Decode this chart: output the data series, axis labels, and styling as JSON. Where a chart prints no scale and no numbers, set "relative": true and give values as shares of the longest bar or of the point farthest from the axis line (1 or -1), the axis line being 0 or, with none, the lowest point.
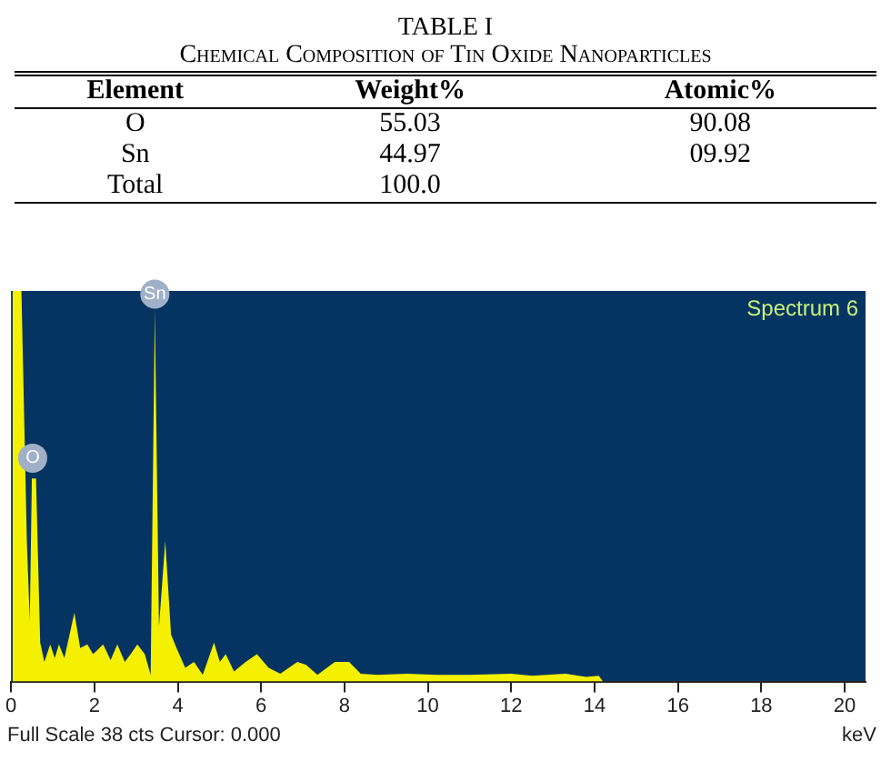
{
  "chart_data": [
    {
      "type": "other",
      "title": "TABLE I",
      "subtitle": "Chemical Composition of Tin Oxide Nanoparticles",
      "ylabel": "Element",
      "categories": [
        "Weight%",
        "Atomic%"
      ],
      "y_categories": [
        "O",
        "Sn",
        "Total"
      ],
      "cell_labels": [
        [
          "55.03",
          "90.08"
        ],
        [
          "44.97",
          "09.92"
        ],
        [
          "100.0",
          null
        ]
      ]
    },
    {
      "type": "area",
      "relative": true,
      "color": "#f4f000",
      "xlabel": "keV",
      "xlim": [
        0,
        20.5
      ],
      "xticks": [
        0,
        2,
        4,
        6,
        8,
        10,
        12,
        14,
        16,
        18,
        20
      ],
      "x": [
        0,
        0.04,
        0.25,
        0.38,
        0.45,
        0.5,
        0.6,
        0.7,
        0.8,
        0.94,
        1.05,
        1.15,
        1.28,
        1.52,
        1.66,
        1.83,
        1.97,
        2.21,
        2.39,
        2.55,
        2.73,
        2.87,
        3.03,
        3.21,
        3.35,
        3.45,
        3.55,
        3.7,
        3.84,
        3.97,
        4.18,
        4.39,
        4.6,
        4.87,
        5.01,
        5.15,
        5.35,
        5.63,
        5.9,
        6.18,
        6.46,
        6.87,
        7.08,
        7.35,
        7.77,
        8.11,
        8.39,
        8.8,
        9.5,
        10.2,
        11.0,
        12.0,
        12.5,
        13.3,
        13.8,
        14.1,
        14.2,
        20.5
      ],
      "values": [
        0,
        1,
        1,
        0.36,
        0.155,
        0.52,
        0.52,
        0.1,
        0.05,
        0.095,
        0.06,
        0.095,
        0.06,
        0.176,
        0.086,
        0.095,
        0.07,
        0.095,
        0.055,
        0.095,
        0.05,
        0.07,
        0.095,
        0.07,
        0.017,
        0.95,
        0.14,
        0.36,
        0.12,
        0.086,
        0.035,
        0.05,
        0.017,
        0.1,
        0.05,
        0.07,
        0.026,
        0.05,
        0.07,
        0.035,
        0.02,
        0.05,
        0.043,
        0.017,
        0.05,
        0.05,
        0.02,
        0.017,
        0.02,
        0.017,
        0.017,
        0.02,
        0.015,
        0.02,
        0.012,
        0.015,
        0,
        0
      ],
      "annotations": [
        "Spectrum 6",
        "Full Scale 38 cts Cursor: 0.000",
        {
          "text": "O",
          "x": 0.52,
          "y": 0.53
        },
        {
          "text": "Sn",
          "x": 3.45,
          "y": 0.95
        }
      ]
    }
  ]
}
